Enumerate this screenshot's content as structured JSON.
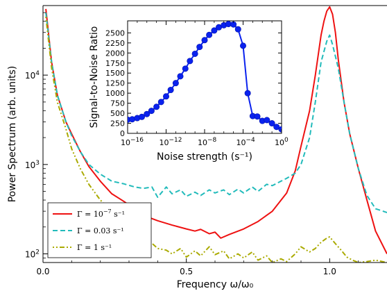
{
  "chart_data": [
    {
      "type": "line",
      "xlabel": "Frequency ω/ω₀",
      "ylabel": "Power Spectrum (arb. units)",
      "yscale": "log",
      "xlim": [
        0.0,
        1.2
      ],
      "ylim": [
        80,
        60000
      ],
      "grid": false,
      "legend_position": "lower-left",
      "x_ticks": [
        {
          "value": 0.0,
          "label": "0.0"
        },
        {
          "value": 0.5,
          "label": "0.5"
        },
        {
          "value": 1.0,
          "label": "1.0"
        }
      ],
      "y_ticks": [
        {
          "value": 100,
          "base": "10",
          "exp": "2"
        },
        {
          "value": 1000,
          "base": "10",
          "exp": "3"
        },
        {
          "value": 10000,
          "base": "10",
          "exp": "4"
        }
      ],
      "series": [
        {
          "name": "Γ = 10⁻⁷ s⁻¹",
          "legend_base": "Γ = 10",
          "legend_exp": "−7",
          "legend_unit": " s⁻¹",
          "color": "#ee1111",
          "dash": "solid",
          "x": [
            0.01,
            0.03,
            0.05,
            0.08,
            0.1,
            0.13,
            0.16,
            0.2,
            0.24,
            0.28,
            0.32,
            0.35,
            0.4,
            0.45,
            0.5,
            0.53,
            0.55,
            0.58,
            0.6,
            0.62,
            0.65,
            0.7,
            0.75,
            0.8,
            0.85,
            0.88,
            0.9,
            0.93,
            0.95,
            0.97,
            0.98,
            0.99,
            1.0,
            1.01,
            1.02,
            1.03,
            1.05,
            1.07,
            1.1,
            1.13,
            1.16,
            1.2
          ],
          "y": [
            55000,
            14000,
            6000,
            3000,
            2200,
            1400,
            950,
            650,
            470,
            390,
            320,
            270,
            235,
            210,
            190,
            180,
            188,
            168,
            175,
            150,
            165,
            190,
            230,
            300,
            480,
            850,
            1600,
            4000,
            10000,
            28000,
            40000,
            52000,
            58000,
            48000,
            30000,
            15000,
            5000,
            2200,
            900,
            400,
            180,
            100
          ]
        },
        {
          "name": "Γ = 0.03 s⁻¹",
          "legend_base": "Γ = 0.03",
          "legend_exp": "",
          "legend_unit": " s⁻¹",
          "color": "#22bbbb",
          "dash": "dashed",
          "x": [
            0.01,
            0.03,
            0.05,
            0.08,
            0.1,
            0.13,
            0.16,
            0.2,
            0.24,
            0.28,
            0.32,
            0.35,
            0.38,
            0.4,
            0.43,
            0.45,
            0.48,
            0.5,
            0.53,
            0.55,
            0.58,
            0.6,
            0.63,
            0.65,
            0.68,
            0.7,
            0.73,
            0.75,
            0.78,
            0.8,
            0.83,
            0.85,
            0.88,
            0.9,
            0.93,
            0.95,
            0.97,
            0.99,
            1.0,
            1.01,
            1.03,
            1.05,
            1.07,
            1.1,
            1.13,
            1.16,
            1.2
          ],
          "y": [
            50000,
            14000,
            6000,
            3000,
            2100,
            1400,
            1000,
            780,
            650,
            610,
            560,
            540,
            560,
            430,
            560,
            470,
            520,
            440,
            490,
            450,
            520,
            480,
            520,
            460,
            530,
            480,
            560,
            500,
            600,
            580,
            650,
            700,
            800,
            1000,
            2000,
            5000,
            14000,
            24000,
            28000,
            22000,
            12000,
            5000,
            2200,
            900,
            450,
            320,
            290
          ]
        },
        {
          "name": "Γ = 1 s⁻¹",
          "legend_base": "Γ = 1",
          "legend_exp": "",
          "legend_unit": " s⁻¹",
          "color": "#aaaa00",
          "dash": "dashdot",
          "x": [
            0.01,
            0.03,
            0.05,
            0.08,
            0.1,
            0.13,
            0.16,
            0.2,
            0.24,
            0.28,
            0.3,
            0.33,
            0.36,
            0.4,
            0.43,
            0.45,
            0.48,
            0.5,
            0.53,
            0.55,
            0.58,
            0.6,
            0.63,
            0.65,
            0.68,
            0.7,
            0.73,
            0.75,
            0.78,
            0.8,
            0.83,
            0.85,
            0.88,
            0.9,
            0.93,
            0.95,
            0.97,
            0.99,
            1.0,
            1.02,
            1.04,
            1.06,
            1.08,
            1.1,
            1.13,
            1.16,
            1.2
          ],
          "y": [
            45000,
            12000,
            5000,
            2500,
            1500,
            900,
            600,
            400,
            300,
            230,
            170,
            130,
            150,
            115,
            110,
            100,
            115,
            92,
            108,
            95,
            120,
            98,
            108,
            88,
            100,
            90,
            105,
            85,
            95,
            80,
            88,
            82,
            100,
            120,
            105,
            115,
            135,
            150,
            155,
            130,
            110,
            92,
            85,
            80,
            82,
            85,
            80
          ]
        }
      ]
    },
    {
      "type": "line",
      "xlabel": "Noise strength (s⁻¹)",
      "ylabel": "Signal-to-Noise Ratio",
      "xscale": "log",
      "xlim": [
        1e-16,
        1
      ],
      "ylim": [
        0,
        2800
      ],
      "grid": false,
      "x_ticks": [
        {
          "value": 1e-16,
          "base": "10",
          "exp": "−16"
        },
        {
          "value": 1e-12,
          "base": "10",
          "exp": "−12"
        },
        {
          "value": 1e-08,
          "base": "10",
          "exp": "−8"
        },
        {
          "value": 0.0001,
          "base": "10",
          "exp": "−4"
        },
        {
          "value": 1,
          "base": "10",
          "exp": "0"
        }
      ],
      "y_ticks": [
        0,
        250,
        500,
        750,
        1000,
        1250,
        1500,
        1750,
        2000,
        2250,
        2500
      ],
      "series": [
        {
          "color": "#0a22ee",
          "marker": "circle",
          "x": [
            1e-16,
            3e-16,
            1e-15,
            3e-15,
            1e-14,
            3e-14,
            1e-13,
            3e-13,
            1e-12,
            3e-12,
            1e-11,
            3e-11,
            1e-10,
            3e-10,
            1e-09,
            3e-09,
            1e-08,
            3e-08,
            1e-07,
            3e-07,
            1e-06,
            3e-06,
            1e-05,
            3e-05,
            0.0001,
            0.0003,
            0.001,
            0.003,
            0.01,
            0.03,
            0.1,
            0.3,
            1
          ],
          "y": [
            340,
            350,
            380,
            410,
            480,
            560,
            660,
            780,
            920,
            1080,
            1250,
            1420,
            1610,
            1800,
            1980,
            2150,
            2320,
            2450,
            2560,
            2640,
            2690,
            2720,
            2710,
            2590,
            2180,
            1000,
            430,
            420,
            310,
            330,
            250,
            160,
            100
          ]
        }
      ]
    }
  ]
}
